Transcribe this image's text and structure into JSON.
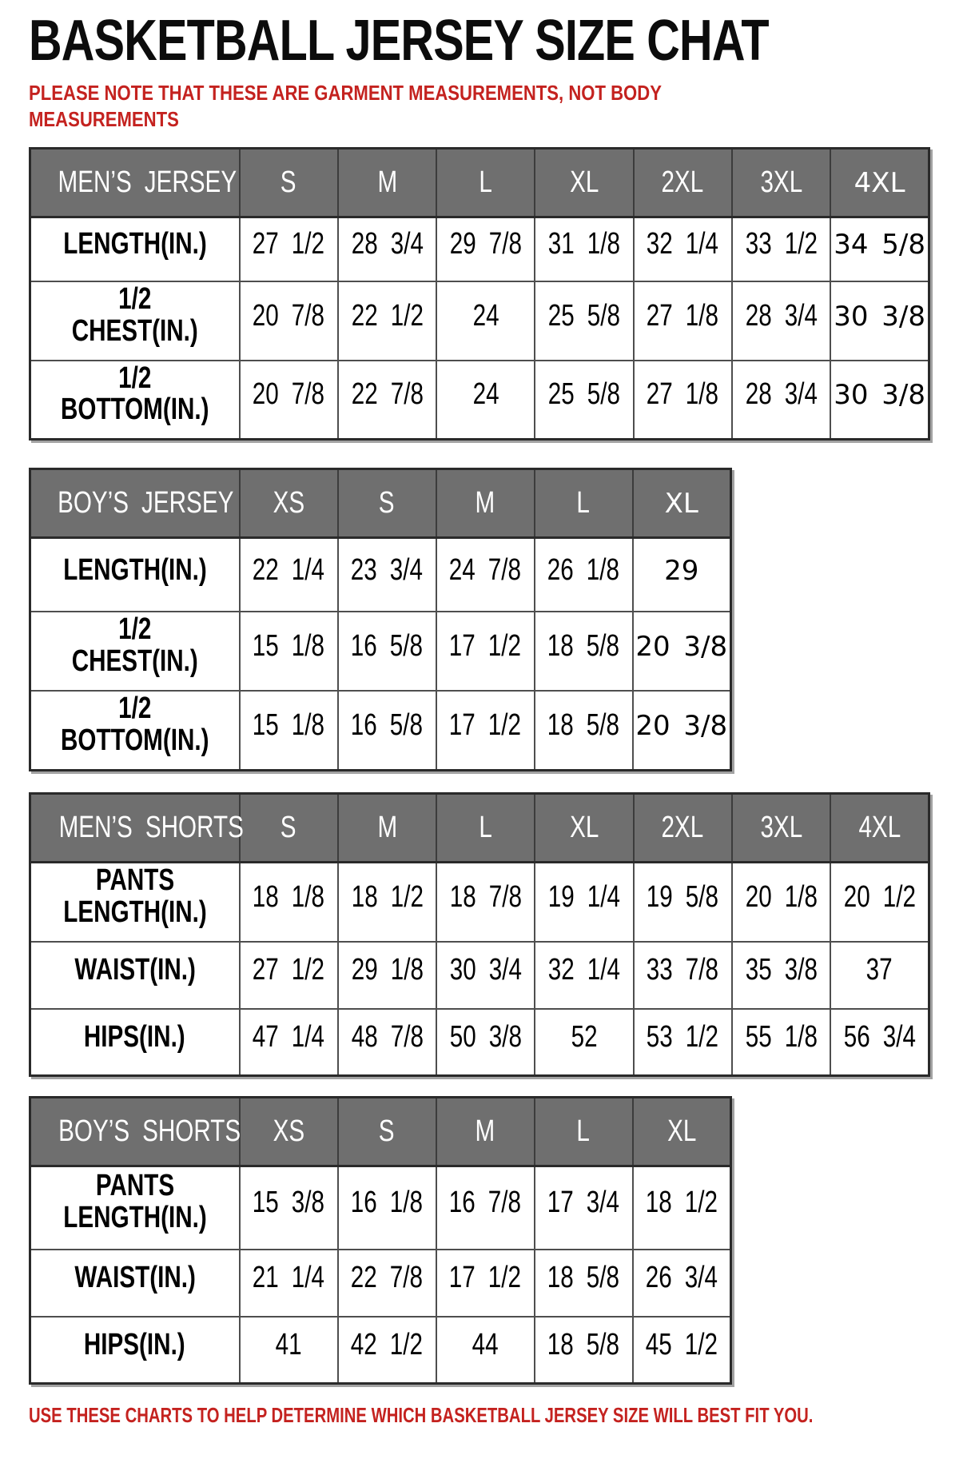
{
  "page": {
    "title": "BASKETBALL JERSEY SIZE CHAT",
    "note": "PLEASE NOTE THAT THESE ARE GARMENT MEASUREMENTS, NOT BODY MEASUREMENTS",
    "footer": "USE THESE CHARTS TO HELP DETERMINE WHICH BASKETBALL JERSEY SIZE WILL BEST FIT YOU.",
    "colors": {
      "accent_red": "#c4221f",
      "header_gray": "#6f6f6f",
      "border_dark": "#2a2a2a",
      "border_inner": "#4e4e4e",
      "shadow_gray": "#a2a2a2"
    }
  },
  "tables": [
    {
      "id": "mens-jersey",
      "header": [
        "MEN’S JERSEY",
        "S",
        "M",
        "L",
        "XL",
        "2XL",
        "3XL",
        "4XL"
      ],
      "rows": [
        {
          "label": "LENGTH(IN.)",
          "values": [
            "27 1/2",
            "28 3/4",
            "29 7/8",
            "31 1/8",
            "32 1/4",
            "33 1/2",
            "34 5/8"
          ]
        },
        {
          "label": "1/2 CHEST(IN.)",
          "values": [
            "20 7/8",
            "22 1/2",
            "24",
            "25 5/8",
            "27 1/8",
            "28 3/4",
            "30 3/8"
          ]
        },
        {
          "label": "1/2 BOTTOM(IN.)",
          "values": [
            "20 7/8",
            "22 7/8",
            "24",
            "25 5/8",
            "27 1/8",
            "28 3/4",
            "30 3/8"
          ]
        }
      ]
    },
    {
      "id": "boys-jersey",
      "header": [
        "BOY’S JERSEY",
        "XS",
        "S",
        "M",
        "L",
        "XL"
      ],
      "rows": [
        {
          "label": "LENGTH(IN.)",
          "values": [
            "22 1/4",
            "23 3/4",
            "24 7/8",
            "26 1/8",
            "29"
          ]
        },
        {
          "label": "1/2 CHEST(IN.)",
          "values": [
            "15 1/8",
            "16 5/8",
            "17 1/2",
            "18 5/8",
            "20 3/8"
          ]
        },
        {
          "label": "1/2 BOTTOM(IN.)",
          "values": [
            "15 1/8",
            "16 5/8",
            "17 1/2",
            "18 5/8",
            "20 3/8"
          ]
        }
      ]
    },
    {
      "id": "mens-shorts",
      "header": [
        "MEN’S SHORTS",
        "S",
        "M",
        "L",
        "XL",
        "2XL",
        "3XL",
        "4XL"
      ],
      "rows": [
        {
          "label": "PANTS\nLENGTH(IN.)",
          "values": [
            "18 1/8",
            "18 1/2",
            "18 7/8",
            "19 1/4",
            "19 5/8",
            "20 1/8",
            "20 1/2"
          ]
        },
        {
          "label": "WAIST(IN.)",
          "values": [
            "27 1/2",
            "29 1/8",
            "30 3/4",
            "32 1/4",
            "33 7/8",
            "35 3/8",
            "37"
          ]
        },
        {
          "label": "HIPS(IN.)",
          "values": [
            "47 1/4",
            "48 7/8",
            "50 3/8",
            "52",
            "53 1/2",
            "55 1/8",
            "56 3/4"
          ]
        }
      ]
    },
    {
      "id": "boys-shorts",
      "header": [
        "BOY’S SHORTS",
        "XS",
        "S",
        "M",
        "L",
        "XL"
      ],
      "rows": [
        {
          "label": "PANTS\nLENGTH(IN.)",
          "values": [
            "15 3/8",
            "16 1/8",
            "16 7/8",
            "17 3/4",
            "18 1/2"
          ]
        },
        {
          "label": "WAIST(IN.)",
          "values": [
            "21 1/4",
            "22 7/8",
            "17 1/2",
            "18 5/8",
            "26 3/4"
          ]
        },
        {
          "label": "HIPS(IN.)",
          "values": [
            "41",
            "42 1/2",
            "44",
            "18 5/8",
            "45 1/2"
          ]
        }
      ]
    }
  ]
}
